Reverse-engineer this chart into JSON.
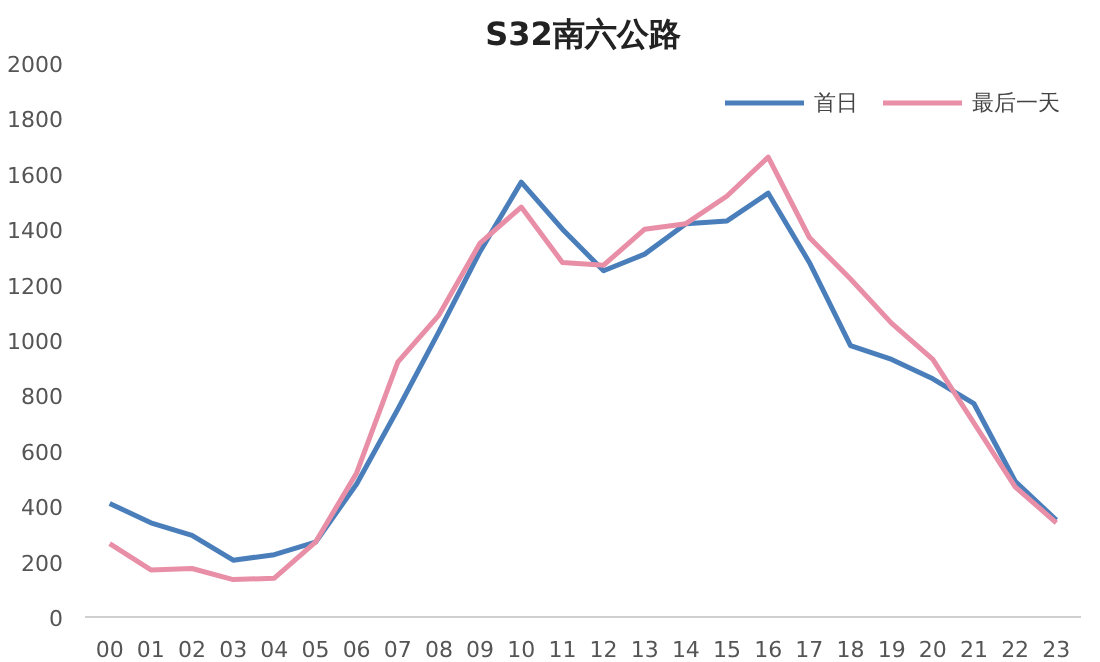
{
  "chart_data": {
    "type": "line",
    "title": "S32南六公路",
    "categories": [
      "00",
      "01",
      "02",
      "03",
      "04",
      "05",
      "06",
      "07",
      "08",
      "09",
      "10",
      "11",
      "12",
      "13",
      "14",
      "15",
      "16",
      "17",
      "18",
      "19",
      "20",
      "21",
      "22",
      "23"
    ],
    "series": [
      {
        "name": "首日",
        "color": "#4a7ebb",
        "values": [
          410,
          340,
          295,
          205,
          225,
          270,
          480,
          750,
          1030,
          1320,
          1570,
          1400,
          1250,
          1310,
          1420,
          1430,
          1530,
          1280,
          980,
          930,
          860,
          770,
          490,
          350
        ]
      },
      {
        "name": "最后一天",
        "color": "#e88ea6",
        "values": [
          265,
          170,
          175,
          135,
          140,
          270,
          520,
          920,
          1090,
          1350,
          1480,
          1280,
          1270,
          1400,
          1420,
          1520,
          1660,
          1370,
          1220,
          1060,
          930,
          700,
          470,
          340
        ]
      }
    ],
    "ylim": [
      0,
      2000
    ],
    "yticks": [
      0,
      200,
      400,
      600,
      800,
      1000,
      1200,
      1400,
      1600,
      1800,
      2000
    ],
    "grid": false,
    "legend": "top right",
    "marker": "none",
    "line_style": "solid"
  }
}
